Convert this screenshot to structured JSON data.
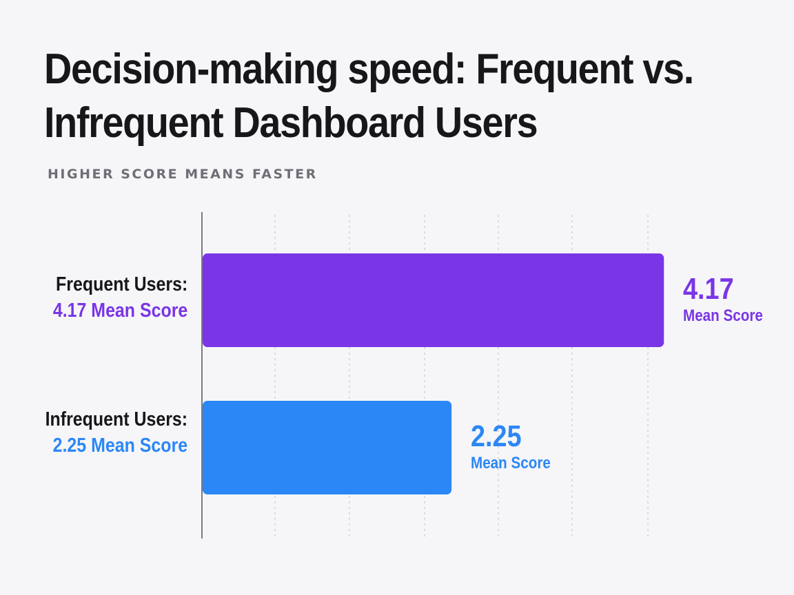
{
  "title": "Decision-making speed: Frequent vs. Infrequent Dashboard Users",
  "subtitle": "HIGHER SCORE MEANS FASTER",
  "chart_data": {
    "type": "bar",
    "orientation": "horizontal",
    "categories": [
      "Frequent Users:",
      "Infrequent Users:"
    ],
    "values": [
      4.17,
      2.25
    ],
    "category_sublabels": [
      "4.17 Mean Score",
      "2.25 Mean Score"
    ],
    "value_labels": [
      {
        "value": "4.17",
        "unit": "Mean Score"
      },
      {
        "value": "2.25",
        "unit": "Mean Score"
      }
    ],
    "colors": [
      "#7a35e6",
      "#2b87f5"
    ],
    "xlim": [
      0,
      5
    ],
    "grid": "vertical dotted",
    "legend": "none",
    "title": "Decision-making speed: Frequent vs. Infrequent Dashboard Users",
    "subtitle": "HIGHER SCORE MEANS FASTER"
  }
}
